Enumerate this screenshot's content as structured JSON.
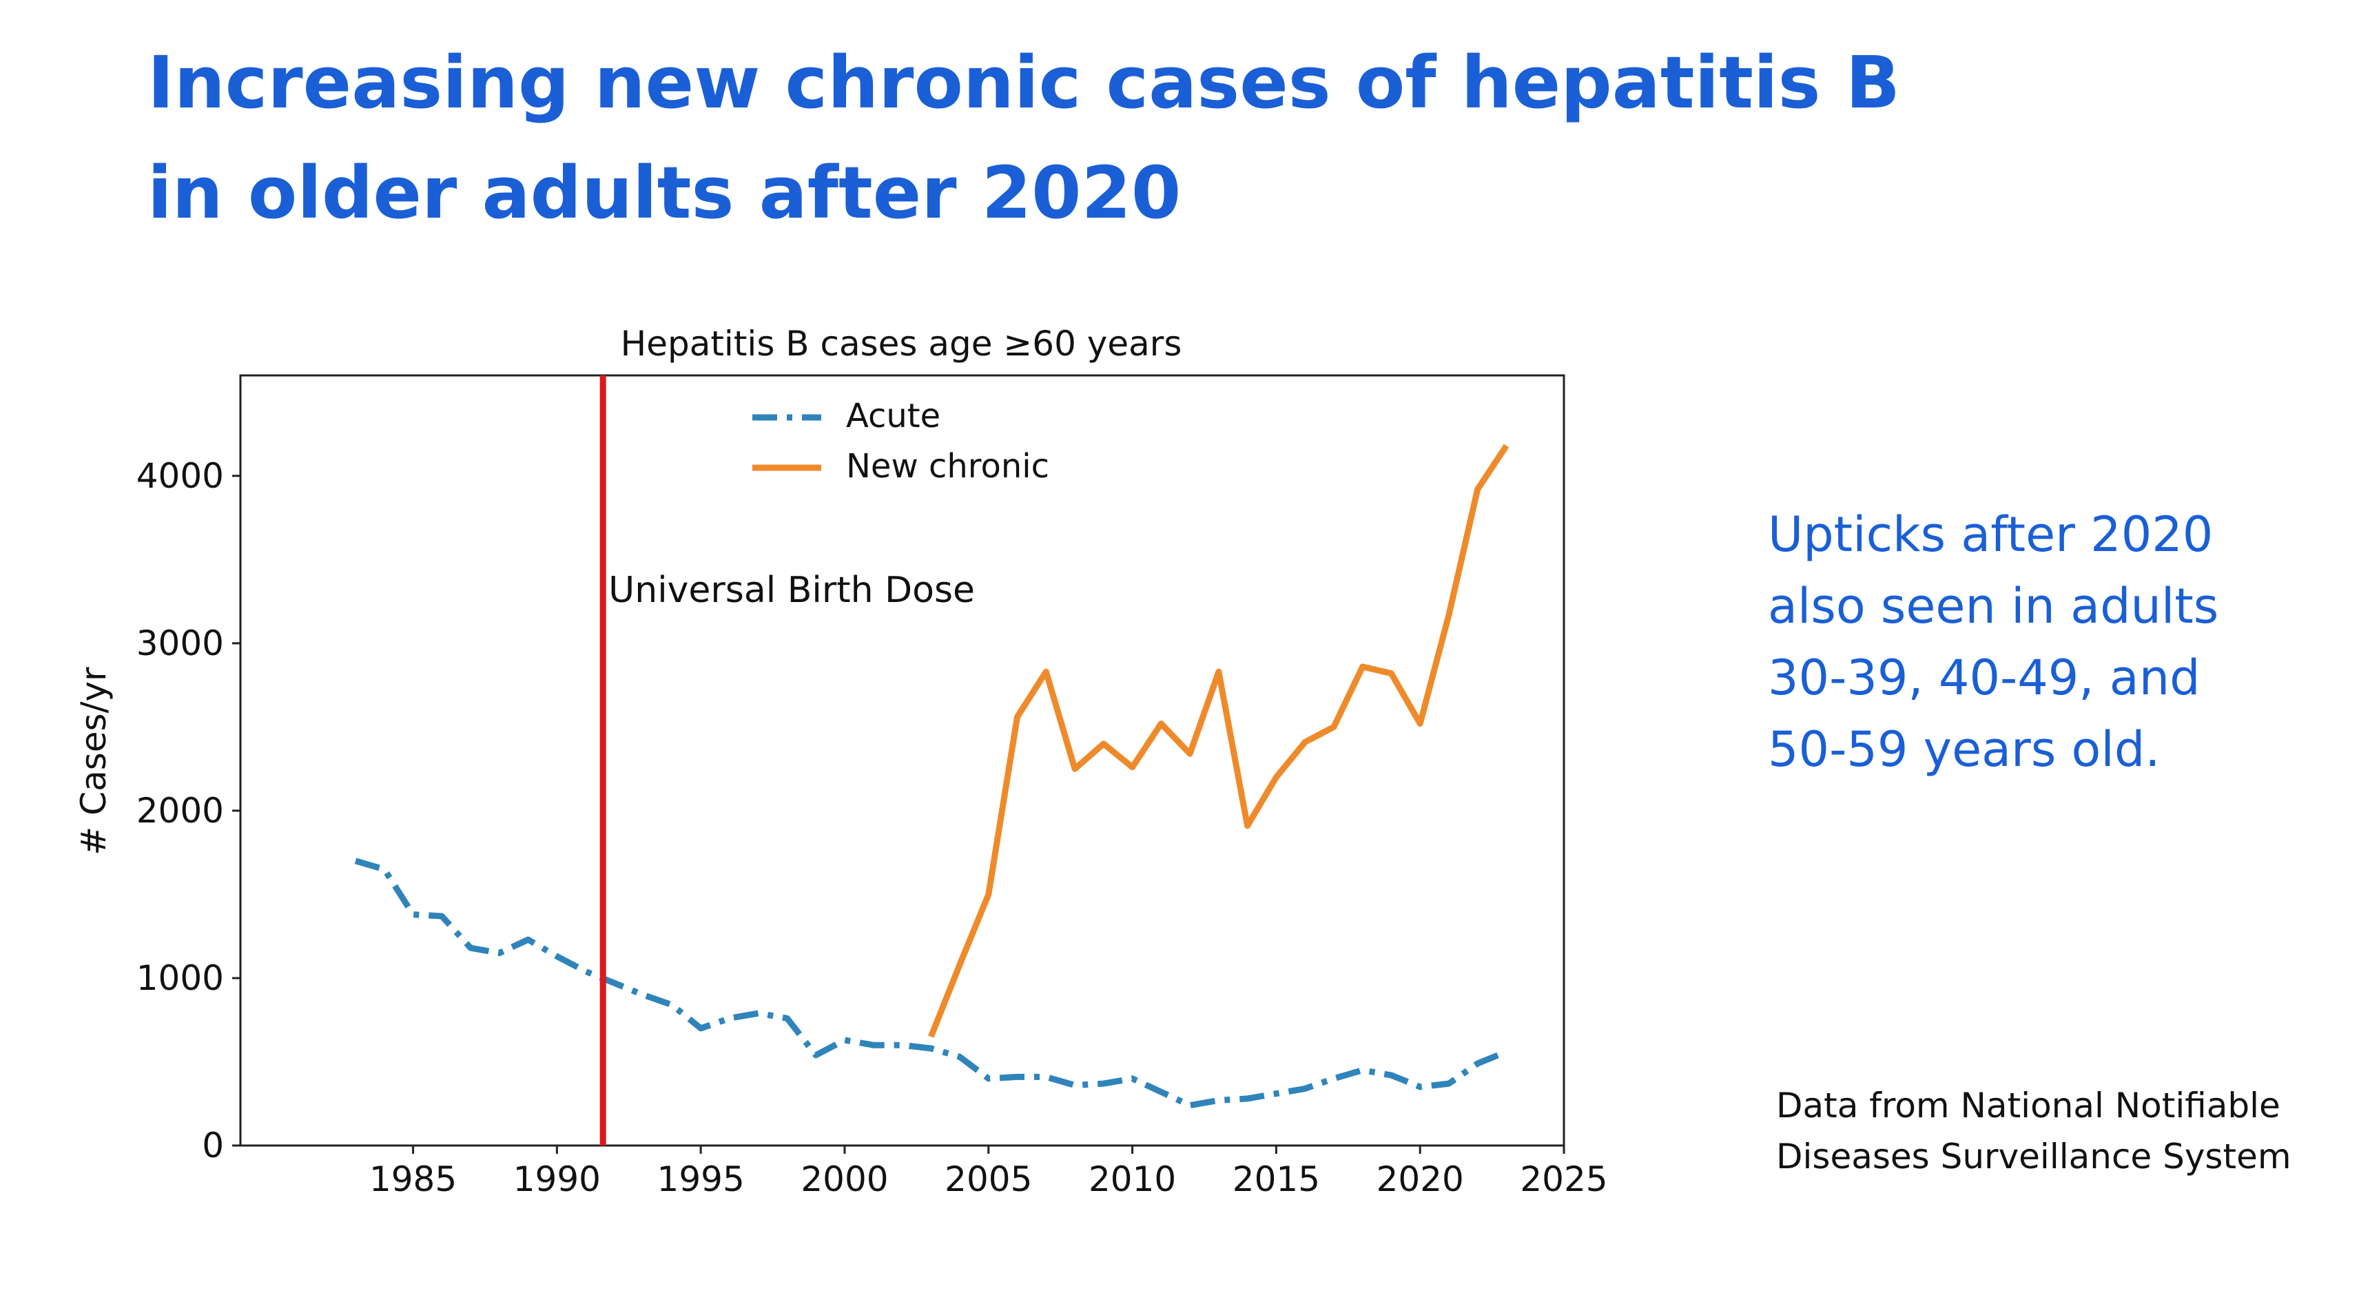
{
  "slide": {
    "title_lines": [
      "Increasing new chronic cases of hepatitis B",
      "in older adults after 2020"
    ],
    "side_note_lines": [
      "Upticks after 2020",
      "also seen in adults",
      "30-39, 40-49, and",
      "50-59 years old."
    ],
    "source_lines": [
      "Data from National Notifiable",
      "Diseases Surveillance System"
    ]
  },
  "colors": {
    "title": "#1a5fd6",
    "acute": "#2f84bb",
    "new_chronic": "#ef8a2b",
    "marker_line": "#d81b1b"
  },
  "chart_data": {
    "type": "line",
    "title": "Hepatitis B cases age ≥60 years",
    "xlabel": "",
    "ylabel": "# Cases/yr",
    "xlim": [
      1979,
      2025
    ],
    "ylim": [
      0,
      4600
    ],
    "xticks": [
      1985,
      1990,
      1995,
      2000,
      2005,
      2010,
      2015,
      2020,
      2025
    ],
    "yticks": [
      0,
      1000,
      2000,
      3000,
      4000
    ],
    "legend_position": "top-center",
    "series": [
      {
        "name": "Acute",
        "style": "dash-dot",
        "x": [
          1983,
          1984,
          1985,
          1986,
          1987,
          1988,
          1989,
          1990,
          1991,
          1992,
          1993,
          1994,
          1995,
          1996,
          1997,
          1998,
          1999,
          2000,
          2001,
          2002,
          2003,
          2004,
          2005,
          2006,
          2007,
          2008,
          2009,
          2010,
          2011,
          2012,
          2013,
          2014,
          2015,
          2016,
          2017,
          2018,
          2019,
          2020,
          2021,
          2022,
          2023
        ],
        "y": [
          1700,
          1650,
          1380,
          1370,
          1180,
          1150,
          1230,
          1130,
          1040,
          970,
          900,
          840,
          700,
          760,
          790,
          760,
          540,
          630,
          600,
          600,
          580,
          530,
          400,
          410,
          410,
          360,
          370,
          400,
          320,
          240,
          270,
          280,
          310,
          340,
          400,
          450,
          420,
          350,
          370,
          490,
          560
        ]
      },
      {
        "name": "New chronic",
        "style": "solid",
        "x": [
          2003,
          2004,
          2005,
          2006,
          2007,
          2008,
          2009,
          2010,
          2011,
          2012,
          2013,
          2014,
          2015,
          2016,
          2017,
          2018,
          2019,
          2020,
          2021,
          2022,
          2023
        ],
        "y": [
          650,
          1080,
          1500,
          2560,
          2830,
          2250,
          2400,
          2260,
          2520,
          2340,
          2830,
          1910,
          2200,
          2410,
          2500,
          2860,
          2820,
          2520,
          3170,
          3920,
          4180
        ]
      }
    ],
    "annotations": [
      {
        "text": "Universal Birth Dose",
        "x": 1991.6
      }
    ]
  }
}
